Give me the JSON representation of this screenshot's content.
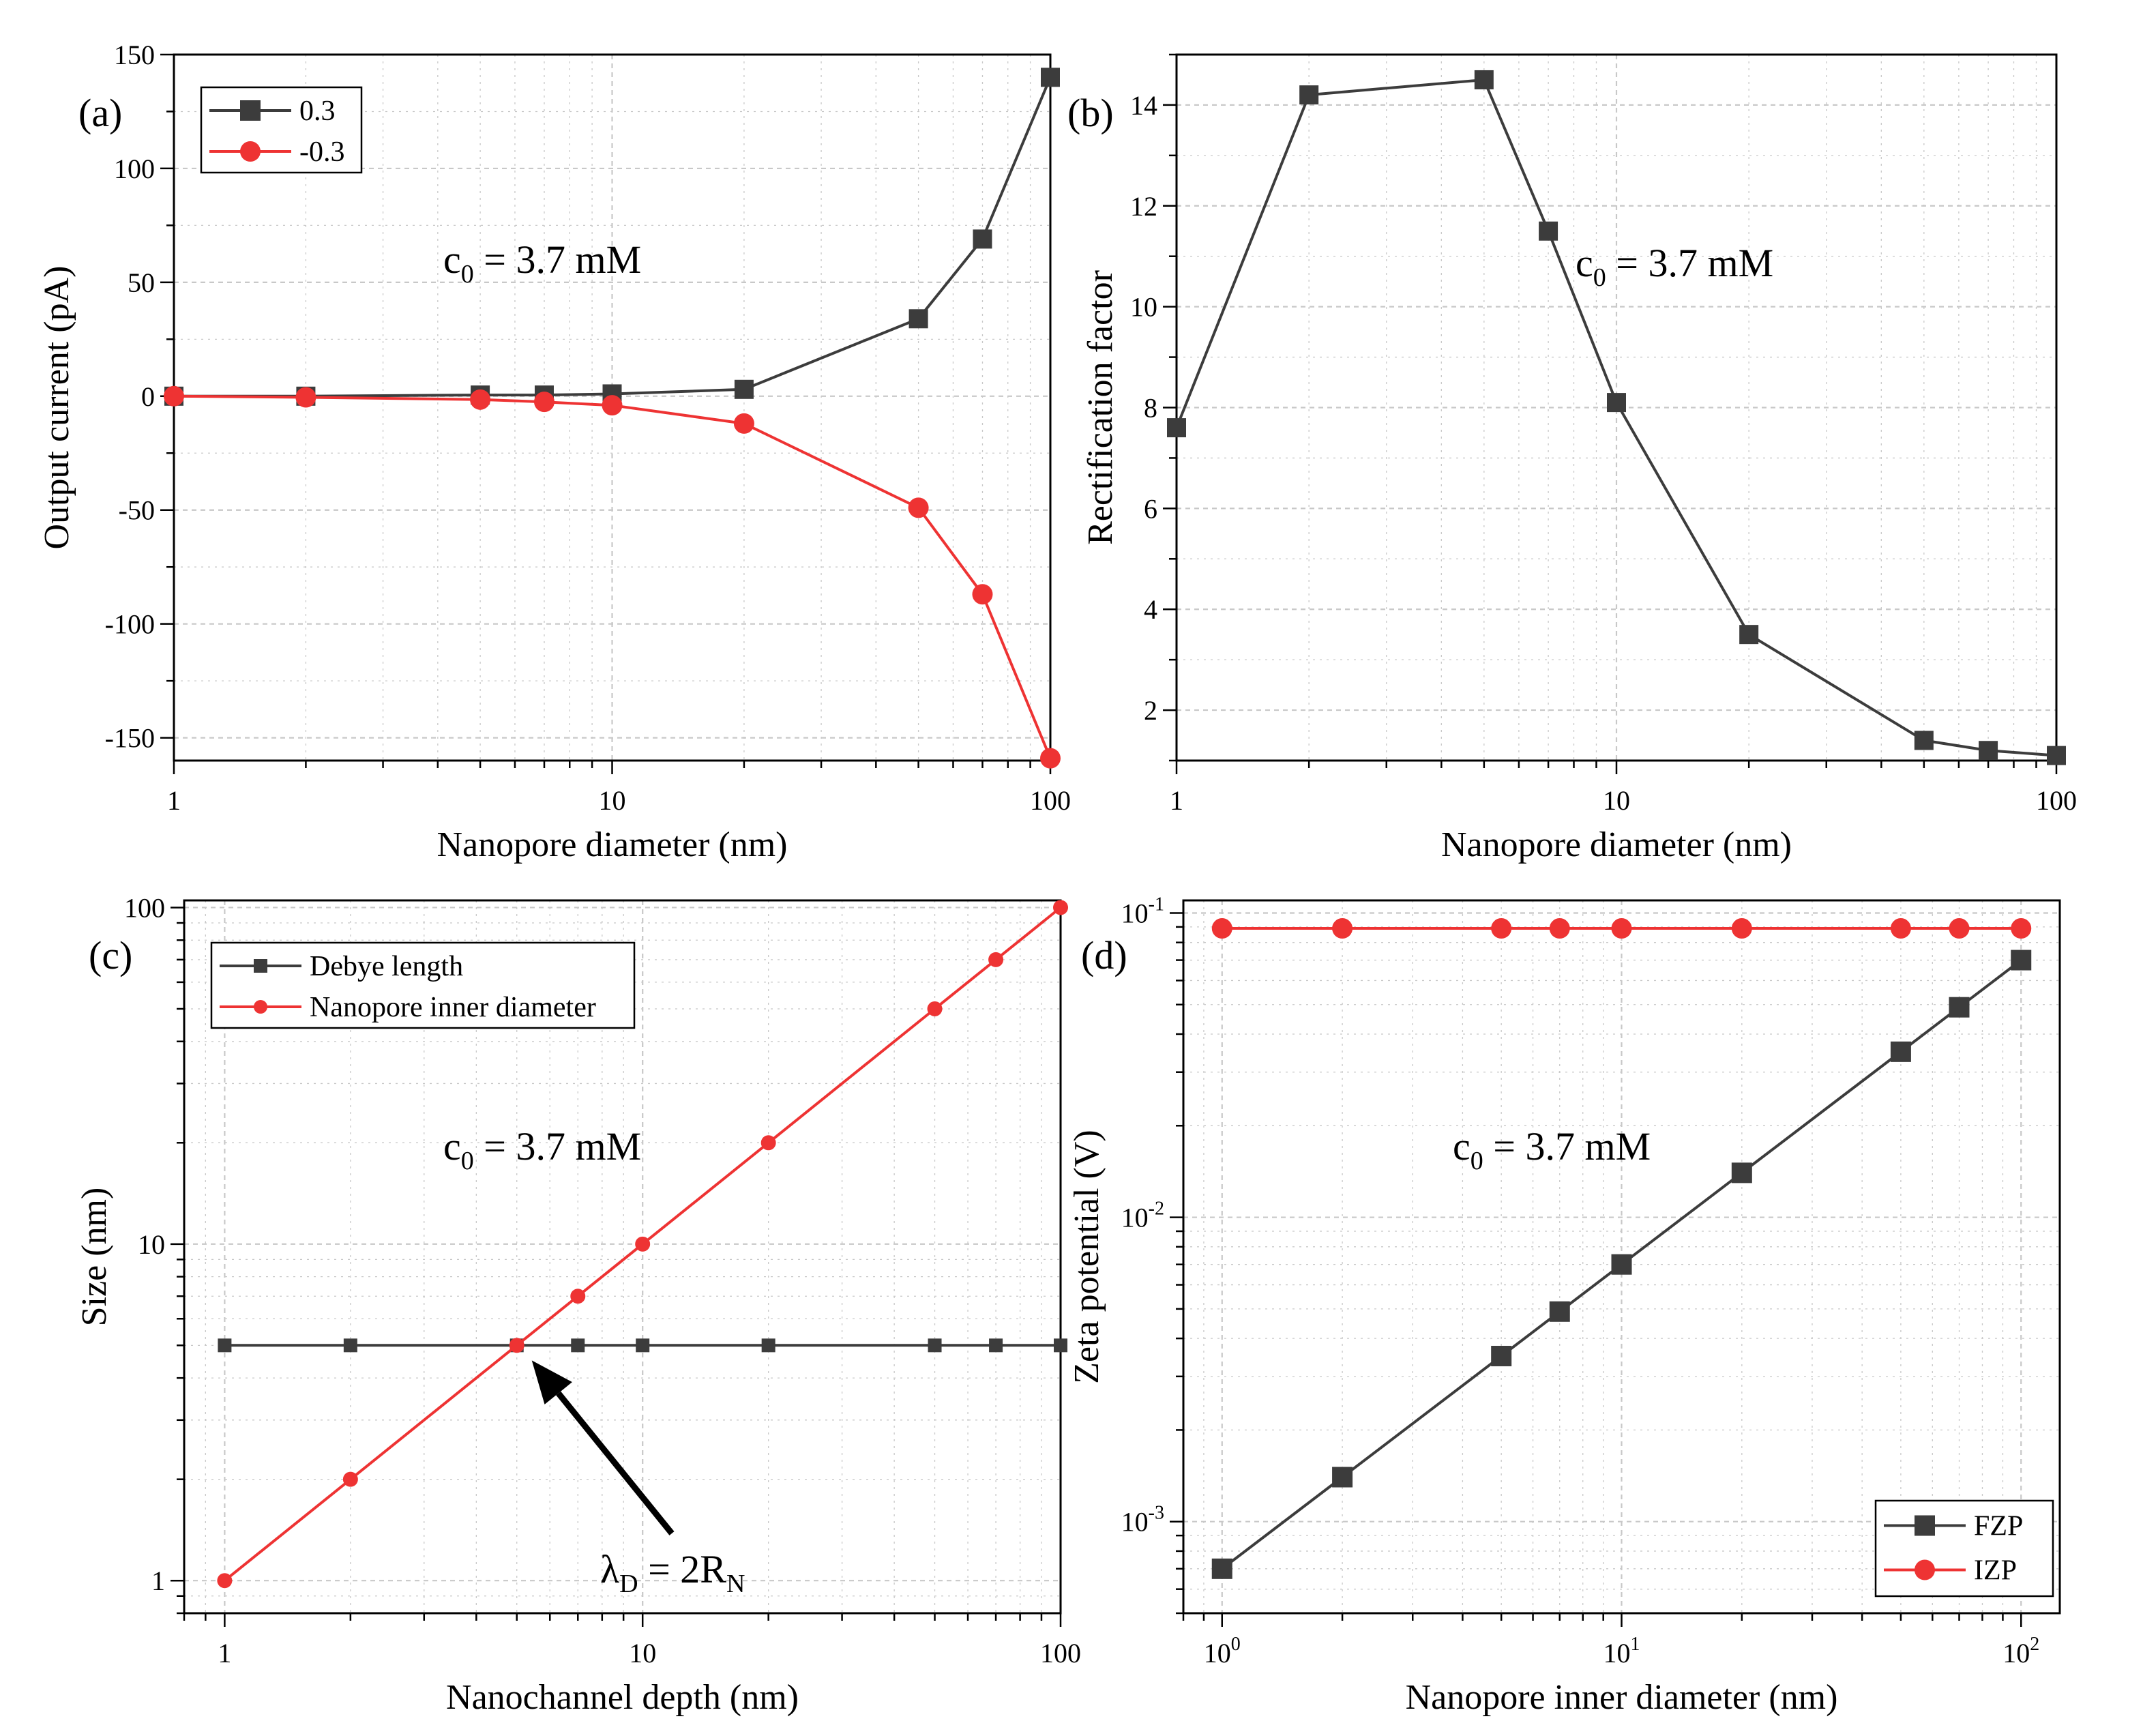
{
  "colors": {
    "dark": "#3c3c3c",
    "red": "#ee3333",
    "grid": "#c8c8c8"
  },
  "chart_data": [
    {
      "panel": "(a)",
      "type": "line",
      "xscale": "log",
      "xlim": [
        1,
        100
      ],
      "ylim": [
        -160,
        150
      ],
      "xlabel": "Nanopore diameter (nm)",
      "ylabel": "Output current (pA)",
      "xticks": [
        {
          "v": 1,
          "label": "1"
        },
        {
          "v": 10,
          "label": "10"
        },
        {
          "v": 100,
          "label": "100"
        }
      ],
      "yticks": [
        {
          "v": 150,
          "label": "150"
        },
        {
          "v": 100,
          "label": "100"
        },
        {
          "v": 50,
          "label": "50"
        },
        {
          "v": 0,
          "label": "0"
        },
        {
          "v": -50,
          "label": "-50"
        },
        {
          "v": -100,
          "label": "-100"
        },
        {
          "v": -150,
          "label": "-150"
        }
      ],
      "annotation": {
        "base": "c",
        "sub": "0",
        "rest": " = 3.7 mM"
      },
      "legend_position": "top-left",
      "series": [
        {
          "name": "0.3",
          "marker": "square",
          "x": [
            1,
            2,
            5,
            7,
            10,
            20,
            50,
            70,
            100
          ],
          "y": [
            0,
            0,
            0.5,
            0.5,
            1,
            3,
            34,
            69,
            140
          ]
        },
        {
          "name": "-0.3",
          "marker": "circle",
          "x": [
            1,
            2,
            5,
            7,
            10,
            20,
            50,
            70,
            100
          ],
          "y": [
            0,
            -0.5,
            -1.5,
            -2.5,
            -4,
            -12,
            -49,
            -87,
            -159
          ]
        }
      ]
    },
    {
      "panel": "(b)",
      "type": "line",
      "xscale": "log",
      "xlim": [
        1,
        100
      ],
      "ylim": [
        1,
        15
      ],
      "xlabel": "Nanopore diameter (nm)",
      "ylabel": "Rectification factor",
      "xticks": [
        {
          "v": 1,
          "label": "1"
        },
        {
          "v": 10,
          "label": "10"
        },
        {
          "v": 100,
          "label": "100"
        }
      ],
      "yticks": [
        {
          "v": 14,
          "label": "14"
        },
        {
          "v": 12,
          "label": "12"
        },
        {
          "v": 10,
          "label": "10"
        },
        {
          "v": 8,
          "label": "8"
        },
        {
          "v": 6,
          "label": "6"
        },
        {
          "v": 4,
          "label": "4"
        },
        {
          "v": 2,
          "label": "2"
        }
      ],
      "annotation": {
        "base": "c",
        "sub": "0",
        "rest": " = 3.7 mM"
      },
      "series": [
        {
          "name": "Rectification factor",
          "marker": "square",
          "x": [
            1,
            2,
            5,
            7,
            10,
            20,
            50,
            70,
            100
          ],
          "y": [
            7.6,
            14.2,
            14.5,
            11.5,
            8.1,
            3.5,
            1.4,
            1.2,
            1.1
          ]
        }
      ]
    },
    {
      "panel": "(c)",
      "type": "line",
      "xscale": "log",
      "yscale": "log",
      "xlim": [
        0.8,
        100
      ],
      "ylim": [
        0.8,
        105
      ],
      "xlabel": "Nanochannel depth (nm)",
      "ylabel": "Size (nm)",
      "xticks": [
        {
          "v": 1,
          "label": "1"
        },
        {
          "v": 10,
          "label": "10"
        },
        {
          "v": 100,
          "label": "100"
        }
      ],
      "yticks": [
        {
          "v": 100,
          "label": "100"
        },
        {
          "v": 10,
          "label": "10"
        },
        {
          "v": 1,
          "label": "1"
        }
      ],
      "annotation": {
        "base": "c",
        "sub": "0",
        "rest": " = 3.7 mM"
      },
      "arrow_label": {
        "base": "λ",
        "sub": "D",
        "mid": " = 2R",
        "sub2": "N"
      },
      "legend_position": "top-left",
      "series": [
        {
          "name": "Debye length",
          "marker": "square",
          "x": [
            1,
            2,
            5,
            7,
            10,
            20,
            50,
            70,
            100
          ],
          "y": [
            5,
            5,
            5,
            5,
            5,
            5,
            5,
            5,
            5
          ]
        },
        {
          "name": "Nanopore inner diameter",
          "marker": "circle",
          "x": [
            1,
            2,
            5,
            7,
            10,
            20,
            50,
            70,
            100
          ],
          "y": [
            1,
            2,
            5,
            7,
            10,
            20,
            50,
            70,
            100
          ]
        }
      ]
    },
    {
      "panel": "(d)",
      "type": "line",
      "xscale": "log",
      "yscale": "log",
      "xlim": [
        0.8,
        125
      ],
      "ylim": [
        0.0005,
        0.11
      ],
      "xlabel": "Nanopore inner diameter (nm)",
      "ylabel": "Zeta potential (V)",
      "xticks": [
        {
          "v": 1,
          "base": "10",
          "exp": "0"
        },
        {
          "v": 10,
          "base": "10",
          "exp": "1"
        },
        {
          "v": 100,
          "base": "10",
          "exp": "2"
        }
      ],
      "yticks": [
        {
          "v": 0.1,
          "base": "10",
          "exp": "-1"
        },
        {
          "v": 0.01,
          "base": "10",
          "exp": "-2"
        },
        {
          "v": 0.001,
          "base": "10",
          "exp": "-3"
        }
      ],
      "annotation": {
        "base": "c",
        "sub": "0",
        "rest": " = 3.7 mM"
      },
      "legend_position": "bottom-right",
      "series": [
        {
          "name": "FZP",
          "marker": "square",
          "x": [
            1,
            2,
            5,
            7,
            10,
            20,
            50,
            70,
            100
          ],
          "y": [
            0.0007,
            0.0014,
            0.0035,
            0.0049,
            0.007,
            0.014,
            0.035,
            0.049,
            0.07
          ]
        },
        {
          "name": "IZP",
          "marker": "circle",
          "x": [
            1,
            2,
            5,
            7,
            10,
            20,
            50,
            70,
            100
          ],
          "y": [
            0.089,
            0.089,
            0.089,
            0.089,
            0.089,
            0.089,
            0.089,
            0.089,
            0.089
          ]
        }
      ]
    }
  ]
}
